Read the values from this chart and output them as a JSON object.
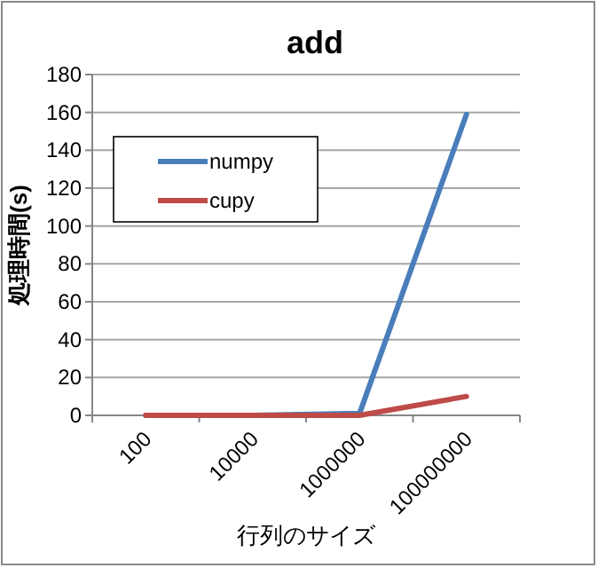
{
  "chart_data": {
    "type": "line",
    "title": "add",
    "xlabel": "行列のサイズ",
    "ylabel": "処理時間(s)",
    "categories": [
      "100",
      "10000",
      "1000000",
      "100000000"
    ],
    "series": [
      {
        "name": "numpy",
        "color": "#4a7ebb",
        "values": [
          0,
          0,
          1,
          159
        ]
      },
      {
        "name": "cupy",
        "color": "#be4b48",
        "values": [
          0,
          0,
          0,
          10
        ]
      }
    ],
    "ylim": [
      0,
      180
    ],
    "yticks": [
      0,
      20,
      40,
      60,
      80,
      100,
      120,
      140,
      160,
      180
    ],
    "grid": "y",
    "legend": "top left",
    "marker": "none",
    "line_style": "solid"
  }
}
